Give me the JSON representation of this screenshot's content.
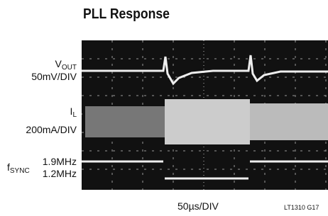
{
  "header": {
    "title": "PLL Response"
  },
  "traces": [
    {
      "symbol": "V",
      "subscript": "OUT",
      "scale": "50mV/DIV"
    },
    {
      "symbol": "I",
      "subscript": "L",
      "scale": "200mA/DIV"
    },
    {
      "symbol": "f",
      "subscript": "SYNC",
      "levels": [
        "1.9MHz",
        "1.2MHz"
      ]
    }
  ],
  "x_label": "50µs/DIV",
  "figure_id": "LT1310 G17"
}
